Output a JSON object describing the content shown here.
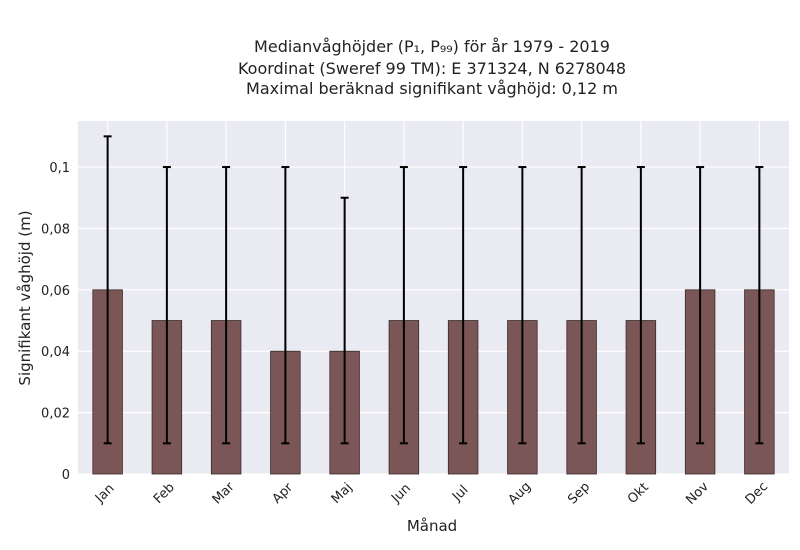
{
  "chart_data": {
    "type": "bar",
    "title_lines": [
      "Medianvåghöjder (P₁, P₉₉) för år 1979 - 2019",
      "Koordinat (Sweref 99 TM): E 371324, N 6278048",
      "Maximal beräknad signifikant våghöjd: 0,12 m"
    ],
    "xlabel": "Månad",
    "ylabel": "Signifikant våghöjd (m)",
    "categories": [
      "Jan",
      "Feb",
      "Mar",
      "Apr",
      "Maj",
      "Jun",
      "Jul",
      "Aug",
      "Sep",
      "Okt",
      "Nov",
      "Dec"
    ],
    "values": [
      0.06,
      0.05,
      0.05,
      0.04,
      0.04,
      0.05,
      0.05,
      0.05,
      0.05,
      0.05,
      0.06,
      0.06
    ],
    "err_low": [
      0.01,
      0.01,
      0.01,
      0.01,
      0.01,
      0.01,
      0.01,
      0.01,
      0.01,
      0.01,
      0.01,
      0.01
    ],
    "err_high": [
      0.11,
      0.1,
      0.1,
      0.1,
      0.09,
      0.1,
      0.1,
      0.1,
      0.1,
      0.1,
      0.1,
      0.1
    ],
    "yticks": [
      0,
      0.02,
      0.04,
      0.06,
      0.08,
      0.1
    ],
    "ytick_labels": [
      "0",
      "0,02",
      "0,04",
      "0,06",
      "0,08",
      "0,1"
    ],
    "ylim": [
      0,
      0.115
    ],
    "grid": true,
    "colors": {
      "bar": "#7a5656",
      "bar_edge": "#3a2a2a",
      "plot_bg": "#eaeaf2",
      "grid": "#ffffff",
      "error_bar": "#000000"
    }
  }
}
